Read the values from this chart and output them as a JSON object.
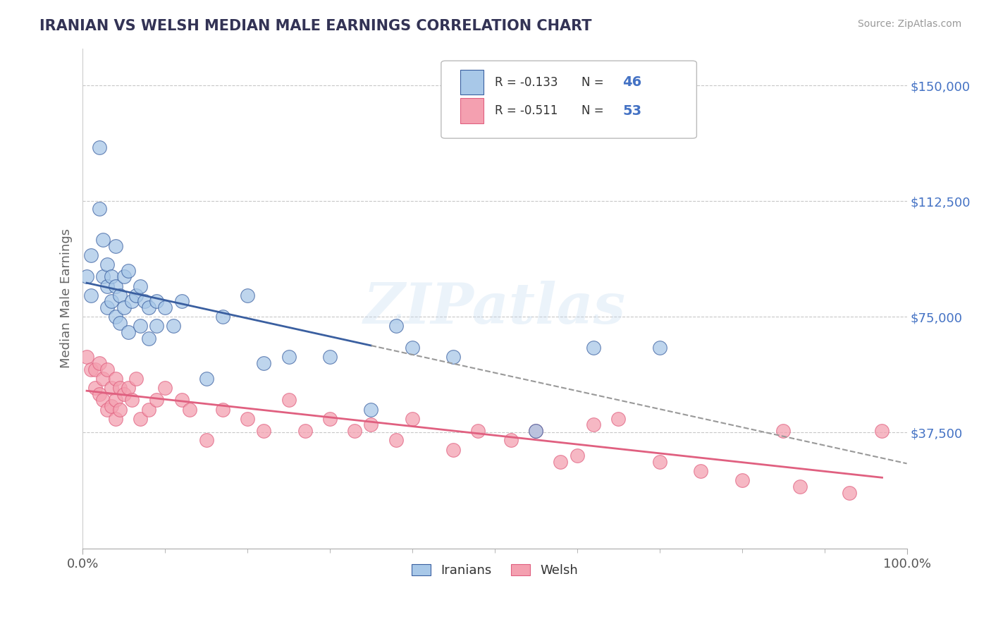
{
  "title": "IRANIAN VS WELSH MEDIAN MALE EARNINGS CORRELATION CHART",
  "source": "Source: ZipAtlas.com",
  "ylabel": "Median Male Earnings",
  "xlim": [
    0,
    1.0
  ],
  "ylim": [
    0,
    162000
  ],
  "yticks": [
    0,
    37500,
    75000,
    112500,
    150000
  ],
  "ytick_labels": [
    "",
    "$37,500",
    "$75,000",
    "$112,500",
    "$150,000"
  ],
  "xtick_labels": [
    "0.0%",
    "100.0%"
  ],
  "background_color": "#ffffff",
  "grid_color": "#c8c8c8",
  "blue_color": "#a8c8e8",
  "pink_color": "#f4a0b0",
  "blue_line_color": "#3a5fa0",
  "pink_line_color": "#e06080",
  "ytick_color": "#4472c4",
  "blue_R": -0.133,
  "blue_N": 46,
  "pink_R": -0.511,
  "pink_N": 53,
  "legend_label_blue": "Iranians",
  "legend_label_pink": "Welsh",
  "watermark": "ZIPatlas",
  "iranians_x": [
    0.005,
    0.01,
    0.01,
    0.02,
    0.02,
    0.025,
    0.025,
    0.03,
    0.03,
    0.03,
    0.035,
    0.035,
    0.04,
    0.04,
    0.04,
    0.045,
    0.045,
    0.05,
    0.05,
    0.055,
    0.055,
    0.06,
    0.065,
    0.07,
    0.07,
    0.075,
    0.08,
    0.08,
    0.09,
    0.09,
    0.1,
    0.11,
    0.12,
    0.15,
    0.17,
    0.2,
    0.22,
    0.25,
    0.3,
    0.35,
    0.38,
    0.4,
    0.45,
    0.55,
    0.62,
    0.7
  ],
  "iranians_y": [
    88000,
    95000,
    82000,
    130000,
    110000,
    100000,
    88000,
    92000,
    85000,
    78000,
    88000,
    80000,
    98000,
    85000,
    75000,
    82000,
    73000,
    88000,
    78000,
    90000,
    70000,
    80000,
    82000,
    85000,
    72000,
    80000,
    78000,
    68000,
    80000,
    72000,
    78000,
    72000,
    80000,
    55000,
    75000,
    82000,
    60000,
    62000,
    62000,
    45000,
    72000,
    65000,
    62000,
    38000,
    65000,
    65000
  ],
  "welsh_x": [
    0.005,
    0.01,
    0.015,
    0.015,
    0.02,
    0.02,
    0.025,
    0.025,
    0.03,
    0.03,
    0.035,
    0.035,
    0.04,
    0.04,
    0.04,
    0.045,
    0.045,
    0.05,
    0.055,
    0.06,
    0.065,
    0.07,
    0.08,
    0.09,
    0.1,
    0.12,
    0.13,
    0.15,
    0.17,
    0.2,
    0.22,
    0.25,
    0.27,
    0.3,
    0.33,
    0.35,
    0.38,
    0.4,
    0.45,
    0.48,
    0.52,
    0.55,
    0.58,
    0.6,
    0.62,
    0.65,
    0.7,
    0.75,
    0.8,
    0.85,
    0.87,
    0.93,
    0.97
  ],
  "welsh_y": [
    62000,
    58000,
    58000,
    52000,
    60000,
    50000,
    55000,
    48000,
    58000,
    45000,
    52000,
    46000,
    55000,
    48000,
    42000,
    52000,
    45000,
    50000,
    52000,
    48000,
    55000,
    42000,
    45000,
    48000,
    52000,
    48000,
    45000,
    35000,
    45000,
    42000,
    38000,
    48000,
    38000,
    42000,
    38000,
    40000,
    35000,
    42000,
    32000,
    38000,
    35000,
    38000,
    28000,
    30000,
    40000,
    42000,
    28000,
    25000,
    22000,
    38000,
    20000,
    18000,
    38000
  ]
}
